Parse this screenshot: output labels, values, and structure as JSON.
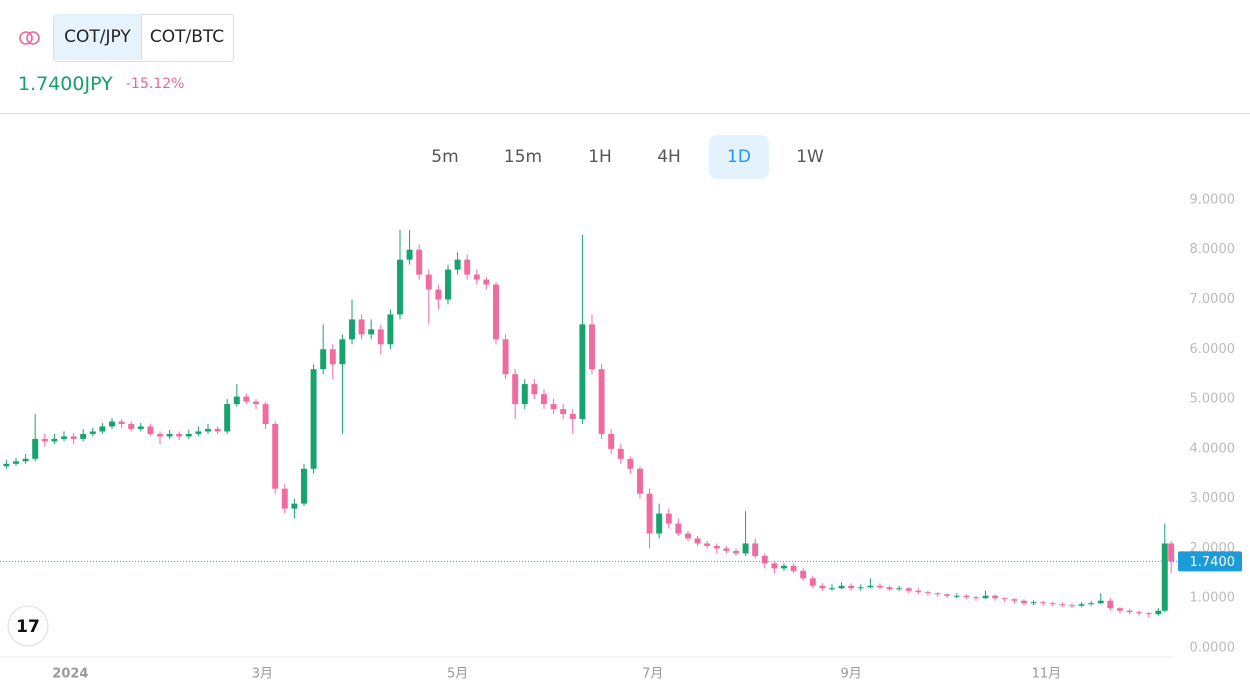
{
  "header": {
    "pairs": [
      "COT/JPY",
      "COT/BTC"
    ],
    "price": "1.7400JPY",
    "change": "-15.12%"
  },
  "intervals": [
    "5m",
    "15m",
    "1H",
    "4H",
    "1D",
    "1W"
  ],
  "chart_data": {
    "type": "candlestick",
    "up_color": "#16a36e",
    "down_color": "#f06ba0",
    "xlim": [
      -22,
      345.2
    ],
    "ylim": [
      -0.14,
      9.4
    ],
    "xticks": [
      {
        "value": 0,
        "label": "2024"
      },
      {
        "value": 60,
        "label": "3月"
      },
      {
        "value": 121,
        "label": "5月"
      },
      {
        "value": 182,
        "label": "7月"
      },
      {
        "value": 244,
        "label": "9月"
      },
      {
        "value": 305,
        "label": "11月"
      }
    ],
    "yticks": [
      {
        "value": 0,
        "label": "0.0000"
      },
      {
        "value": 1,
        "label": "1.0000"
      },
      {
        "value": 2,
        "label": "2.0000"
      },
      {
        "value": 3,
        "label": "3.0000"
      },
      {
        "value": 4,
        "label": "4.0000"
      },
      {
        "value": 5,
        "label": "5.0000"
      },
      {
        "value": 6,
        "label": "6.0000"
      },
      {
        "value": 7,
        "label": "7.0000"
      },
      {
        "value": 8,
        "label": "8.0000"
      },
      {
        "value": 9,
        "label": "9.0000"
      }
    ],
    "grid": false,
    "price_line": {
      "value": 1.74,
      "label": "1.7400",
      "color": "#1b9bd8"
    },
    "x": [
      -20,
      -17,
      -14,
      -11,
      -8,
      -5,
      -2,
      1,
      4,
      7,
      10,
      13,
      16,
      19,
      22,
      25,
      28,
      31,
      34,
      37,
      40,
      43,
      46,
      49,
      52,
      55,
      58,
      61,
      64,
      67,
      70,
      73,
      76,
      79,
      82,
      85,
      88,
      91,
      94,
      97,
      100,
      103,
      106,
      109,
      112,
      115,
      118,
      121,
      124,
      127,
      130,
      133,
      136,
      139,
      142,
      145,
      148,
      151,
      154,
      157,
      160,
      163,
      166,
      169,
      172,
      175,
      178,
      181,
      184,
      187,
      190,
      193,
      196,
      199,
      202,
      205,
      208,
      211,
      214,
      217,
      220,
      223,
      226,
      229,
      232,
      235,
      238,
      241,
      244,
      247,
      250,
      253,
      256,
      259,
      262,
      265,
      268,
      271,
      274,
      277,
      280,
      283,
      286,
      289,
      292,
      295,
      298,
      301,
      304,
      307,
      310,
      313,
      316,
      319,
      322,
      325,
      328,
      331,
      334,
      337,
      340,
      342,
      344
    ],
    "ohlc": [
      [
        3.65,
        3.78,
        3.6,
        3.7
      ],
      [
        3.7,
        3.82,
        3.66,
        3.75
      ],
      [
        3.75,
        3.9,
        3.7,
        3.8
      ],
      [
        3.8,
        4.7,
        3.75,
        4.2
      ],
      [
        4.2,
        4.3,
        4.05,
        4.15
      ],
      [
        4.15,
        4.3,
        4.1,
        4.2
      ],
      [
        4.2,
        4.35,
        4.15,
        4.25
      ],
      [
        4.25,
        4.32,
        4.1,
        4.2
      ],
      [
        4.2,
        4.4,
        4.15,
        4.3
      ],
      [
        4.3,
        4.42,
        4.25,
        4.35
      ],
      [
        4.35,
        4.52,
        4.3,
        4.45
      ],
      [
        4.45,
        4.62,
        4.4,
        4.55
      ],
      [
        4.55,
        4.6,
        4.42,
        4.5
      ],
      [
        4.5,
        4.55,
        4.35,
        4.4
      ],
      [
        4.4,
        4.52,
        4.35,
        4.45
      ],
      [
        4.45,
        4.5,
        4.25,
        4.3
      ],
      [
        4.3,
        4.35,
        4.1,
        4.25
      ],
      [
        4.25,
        4.38,
        4.2,
        4.3
      ],
      [
        4.3,
        4.35,
        4.18,
        4.25
      ],
      [
        4.25,
        4.38,
        4.2,
        4.3
      ],
      [
        4.3,
        4.45,
        4.25,
        4.35
      ],
      [
        4.35,
        4.5,
        4.3,
        4.4
      ],
      [
        4.4,
        4.45,
        4.3,
        4.35
      ],
      [
        4.35,
        5.0,
        4.3,
        4.9
      ],
      [
        4.9,
        5.3,
        4.85,
        5.05
      ],
      [
        5.05,
        5.1,
        4.9,
        4.95
      ],
      [
        4.95,
        5.0,
        4.8,
        4.9
      ],
      [
        4.9,
        4.95,
        4.4,
        4.5
      ],
      [
        4.5,
        4.55,
        3.1,
        3.2
      ],
      [
        3.2,
        3.3,
        2.7,
        2.8
      ],
      [
        2.8,
        3.0,
        2.6,
        2.9
      ],
      [
        2.9,
        3.7,
        2.85,
        3.6
      ],
      [
        3.6,
        5.7,
        3.5,
        5.6
      ],
      [
        5.6,
        6.5,
        5.5,
        6.0
      ],
      [
        6.0,
        6.1,
        5.4,
        5.7
      ],
      [
        5.7,
        6.3,
        4.3,
        6.2
      ],
      [
        6.2,
        7.0,
        6.1,
        6.6
      ],
      [
        6.6,
        6.7,
        6.2,
        6.3
      ],
      [
        6.3,
        6.6,
        6.2,
        6.4
      ],
      [
        6.4,
        6.5,
        5.9,
        6.1
      ],
      [
        6.1,
        6.8,
        6.0,
        6.7
      ],
      [
        6.7,
        8.4,
        6.6,
        7.8
      ],
      [
        7.8,
        8.4,
        7.7,
        8.0
      ],
      [
        8.0,
        8.1,
        7.4,
        7.5
      ],
      [
        7.5,
        7.6,
        6.5,
        7.2
      ],
      [
        7.2,
        7.3,
        6.8,
        7.0
      ],
      [
        7.0,
        7.7,
        6.9,
        7.6
      ],
      [
        7.6,
        7.95,
        7.5,
        7.8
      ],
      [
        7.8,
        7.9,
        7.4,
        7.5
      ],
      [
        7.5,
        7.6,
        7.3,
        7.4
      ],
      [
        7.4,
        7.45,
        7.2,
        7.3
      ],
      [
        7.3,
        7.35,
        6.1,
        6.2
      ],
      [
        6.2,
        6.3,
        5.4,
        5.5
      ],
      [
        5.5,
        5.6,
        4.6,
        4.9
      ],
      [
        4.9,
        5.4,
        4.8,
        5.3
      ],
      [
        5.3,
        5.4,
        5.0,
        5.1
      ],
      [
        5.1,
        5.2,
        4.8,
        4.9
      ],
      [
        4.9,
        5.0,
        4.7,
        4.8
      ],
      [
        4.8,
        4.9,
        4.6,
        4.7
      ],
      [
        4.7,
        4.8,
        4.3,
        4.6
      ],
      [
        4.6,
        8.3,
        4.5,
        6.5
      ],
      [
        6.5,
        6.7,
        5.5,
        5.6
      ],
      [
        5.6,
        5.7,
        4.2,
        4.3
      ],
      [
        4.3,
        4.4,
        3.9,
        4.0
      ],
      [
        4.0,
        4.1,
        3.7,
        3.8
      ],
      [
        3.8,
        3.85,
        3.5,
        3.6
      ],
      [
        3.6,
        3.65,
        3.0,
        3.1
      ],
      [
        3.1,
        3.2,
        2.0,
        2.3
      ],
      [
        2.3,
        2.9,
        2.2,
        2.7
      ],
      [
        2.7,
        2.8,
        2.4,
        2.5
      ],
      [
        2.5,
        2.6,
        2.25,
        2.3
      ],
      [
        2.3,
        2.35,
        2.15,
        2.2
      ],
      [
        2.2,
        2.25,
        2.05,
        2.1
      ],
      [
        2.1,
        2.15,
        2.0,
        2.05
      ],
      [
        2.05,
        2.1,
        1.9,
        2.0
      ],
      [
        2.0,
        2.05,
        1.9,
        1.95
      ],
      [
        1.95,
        2.0,
        1.85,
        1.9
      ],
      [
        1.9,
        2.75,
        1.85,
        2.1
      ],
      [
        2.1,
        2.2,
        1.8,
        1.85
      ],
      [
        1.85,
        1.9,
        1.6,
        1.7
      ],
      [
        1.7,
        1.75,
        1.5,
        1.6
      ],
      [
        1.6,
        1.7,
        1.55,
        1.65
      ],
      [
        1.65,
        1.7,
        1.5,
        1.55
      ],
      [
        1.55,
        1.6,
        1.35,
        1.4
      ],
      [
        1.4,
        1.45,
        1.2,
        1.25
      ],
      [
        1.25,
        1.3,
        1.15,
        1.2
      ],
      [
        1.2,
        1.28,
        1.15,
        1.2
      ],
      [
        1.2,
        1.32,
        1.18,
        1.25
      ],
      [
        1.25,
        1.3,
        1.15,
        1.2
      ],
      [
        1.2,
        1.28,
        1.15,
        1.22
      ],
      [
        1.22,
        1.4,
        1.2,
        1.25
      ],
      [
        1.25,
        1.3,
        1.18,
        1.22
      ],
      [
        1.22,
        1.25,
        1.15,
        1.18
      ],
      [
        1.18,
        1.25,
        1.15,
        1.2
      ],
      [
        1.2,
        1.22,
        1.1,
        1.15
      ],
      [
        1.15,
        1.2,
        1.08,
        1.12
      ],
      [
        1.12,
        1.15,
        1.05,
        1.1
      ],
      [
        1.1,
        1.12,
        1.03,
        1.08
      ],
      [
        1.08,
        1.1,
        1.0,
        1.05
      ],
      [
        1.05,
        1.1,
        1.0,
        1.05
      ],
      [
        1.05,
        1.08,
        0.98,
        1.02
      ],
      [
        1.02,
        1.05,
        0.95,
        1.0
      ],
      [
        1.0,
        1.15,
        0.98,
        1.05
      ],
      [
        1.05,
        1.08,
        0.95,
        1.0
      ],
      [
        1.0,
        1.02,
        0.92,
        0.98
      ],
      [
        0.98,
        1.0,
        0.9,
        0.95
      ],
      [
        0.95,
        0.98,
        0.85,
        0.9
      ],
      [
        0.9,
        0.96,
        0.86,
        0.92
      ],
      [
        0.92,
        0.95,
        0.85,
        0.9
      ],
      [
        0.9,
        0.93,
        0.84,
        0.88
      ],
      [
        0.88,
        0.92,
        0.82,
        0.86
      ],
      [
        0.86,
        0.9,
        0.8,
        0.85
      ],
      [
        0.85,
        0.92,
        0.82,
        0.88
      ],
      [
        0.88,
        0.95,
        0.85,
        0.9
      ],
      [
        0.9,
        1.1,
        0.88,
        0.95
      ],
      [
        0.95,
        1.0,
        0.75,
        0.8
      ],
      [
        0.8,
        0.82,
        0.7,
        0.75
      ],
      [
        0.75,
        0.78,
        0.68,
        0.72
      ],
      [
        0.72,
        0.75,
        0.65,
        0.7
      ],
      [
        0.7,
        0.72,
        0.62,
        0.68
      ],
      [
        0.68,
        0.8,
        0.65,
        0.75
      ],
      [
        0.75,
        2.5,
        0.72,
        2.1
      ],
      [
        2.1,
        2.15,
        1.5,
        1.74
      ]
    ]
  }
}
